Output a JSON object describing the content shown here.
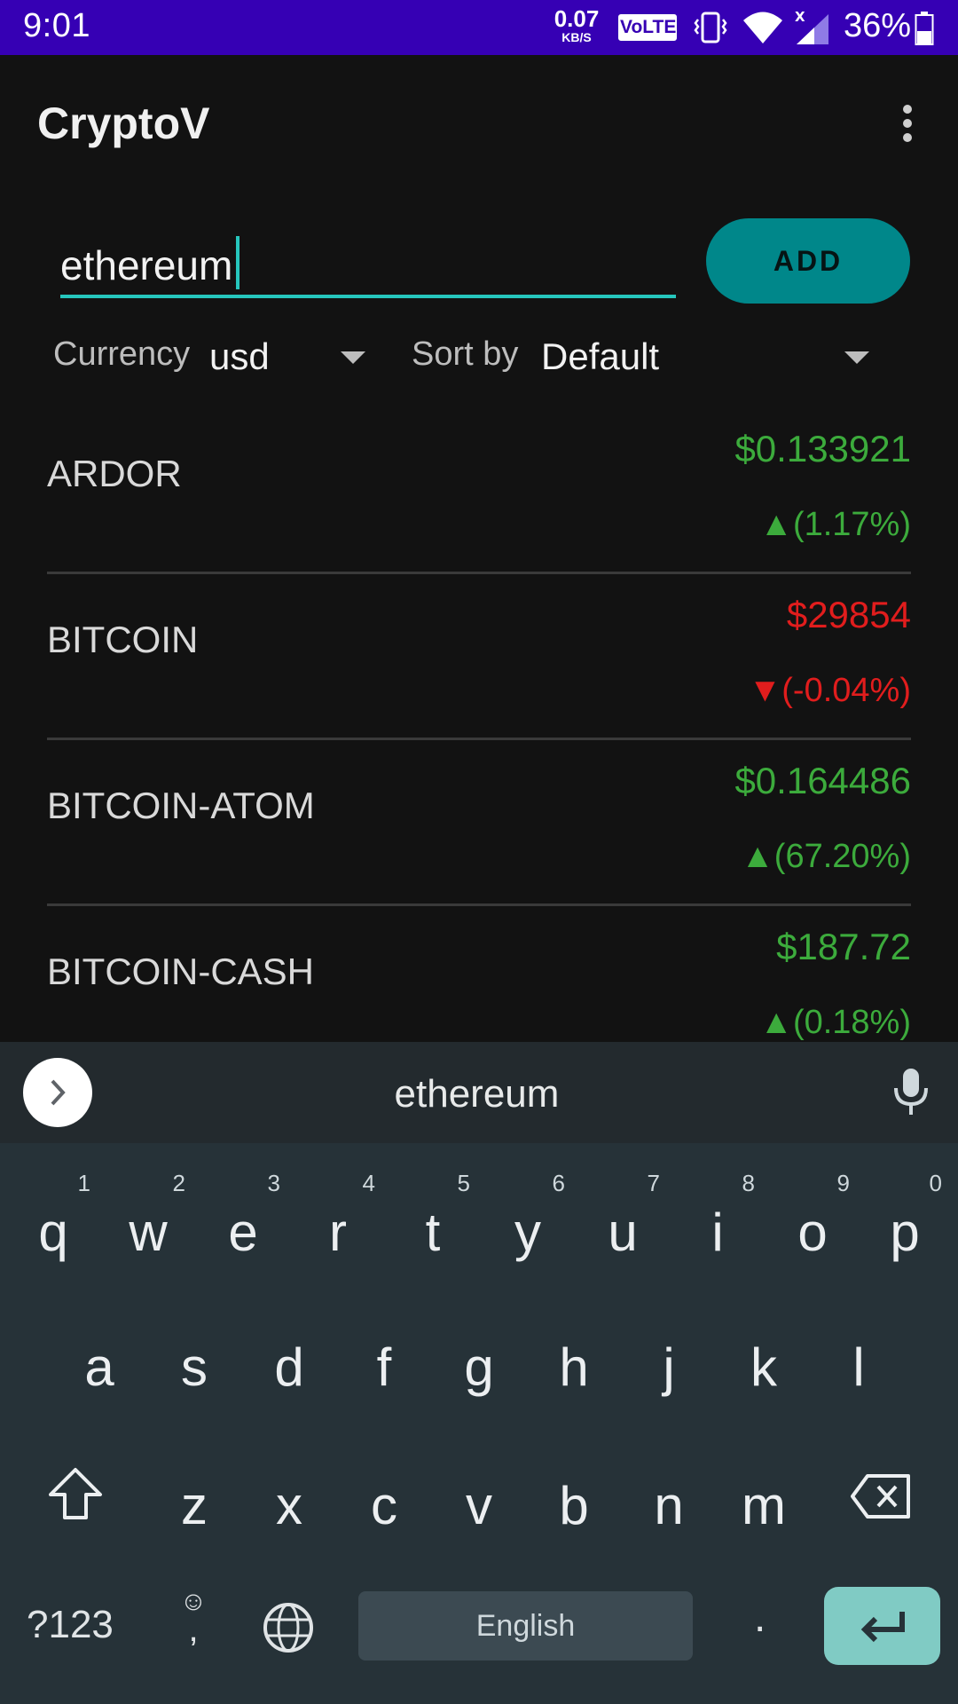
{
  "status_bar": {
    "time": "9:01",
    "net_speed_value": "0.07",
    "net_speed_unit": "KB/S",
    "volte": "VoLTE",
    "battery_pct": "36%",
    "icons": [
      "vibrate-icon",
      "wifi-icon",
      "signal-icon",
      "battery-icon"
    ]
  },
  "app_bar": {
    "title": "CryptoV",
    "menu_icon": "overflow-menu-icon"
  },
  "search": {
    "value": "ethereum",
    "add_label": "ADD"
  },
  "filters": {
    "currency_label": "Currency",
    "currency_value": "usd",
    "sort_label": "Sort by",
    "sort_value": "Default"
  },
  "coins": [
    {
      "name": "ARDOR",
      "price": "$0.133921",
      "change": "▲(1.17%)",
      "trend": "up"
    },
    {
      "name": "BITCOIN",
      "price": "$29854",
      "change": "▼(-0.04%)",
      "trend": "down"
    },
    {
      "name": "BITCOIN-ATOM",
      "price": "$0.164486",
      "change": "▲(67.20%)",
      "trend": "up"
    },
    {
      "name": "BITCOIN-CASH",
      "price": "$187.72",
      "change": "▲(0.18%)",
      "trend": "up"
    }
  ],
  "keyboard": {
    "suggestion": "ethereum",
    "row1": [
      {
        "ch": "q",
        "num": "1"
      },
      {
        "ch": "w",
        "num": "2"
      },
      {
        "ch": "e",
        "num": "3"
      },
      {
        "ch": "r",
        "num": "4"
      },
      {
        "ch": "t",
        "num": "5"
      },
      {
        "ch": "y",
        "num": "6"
      },
      {
        "ch": "u",
        "num": "7"
      },
      {
        "ch": "i",
        "num": "8"
      },
      {
        "ch": "o",
        "num": "9"
      },
      {
        "ch": "p",
        "num": "0"
      }
    ],
    "row2": [
      "a",
      "s",
      "d",
      "f",
      "g",
      "h",
      "j",
      "k",
      "l"
    ],
    "row3": [
      "z",
      "x",
      "c",
      "v",
      "b",
      "n",
      "m"
    ],
    "symbols_label": "?123",
    "emoji_glyph": "☺",
    "comma": ",",
    "space_label": "English",
    "period": "."
  },
  "colors": {
    "status_bar": "#3600b4",
    "accent": "#26c6bd",
    "add_button": "#00878a",
    "up": "#3cab3c",
    "down": "#e11d1d",
    "keyboard_bg": "#263238",
    "enter_key": "#80cbc4"
  }
}
